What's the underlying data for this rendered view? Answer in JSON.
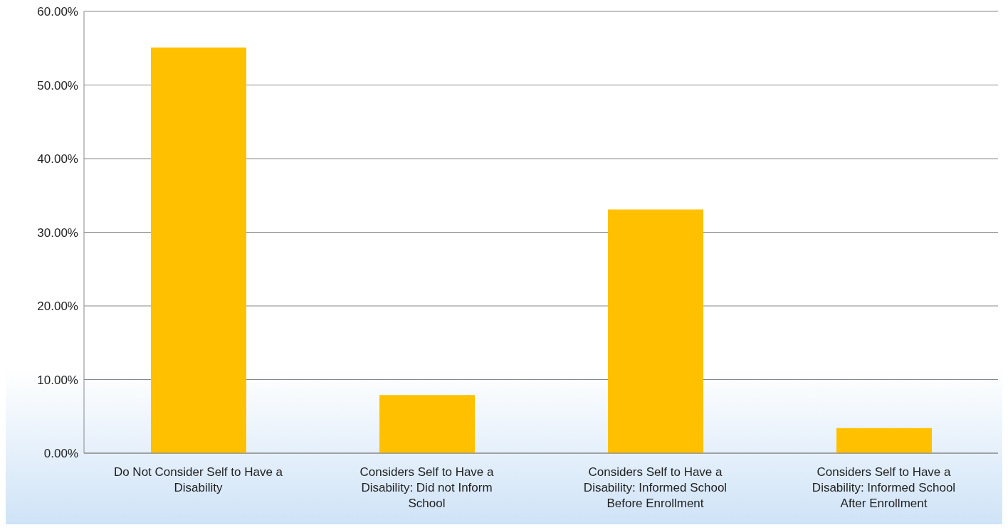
{
  "chart_data": {
    "type": "bar",
    "categories": [
      "Do Not Consider Self to Have a Disability",
      "Considers Self to Have a Disability: Did not Inform School",
      "Considers Self to Have a Disability: Informed School Before Enrollment",
      "Considers Self to Have a Disability: Informed School After Enrollment"
    ],
    "values": [
      55.1,
      7.9,
      33.1,
      3.4
    ],
    "color": "#ffc000",
    "ylim": [
      0,
      60
    ],
    "yticks": [
      {
        "value": 0,
        "label": "0.00%"
      },
      {
        "value": 10,
        "label": "10.00%"
      },
      {
        "value": 20,
        "label": "20.00%"
      },
      {
        "value": 30,
        "label": "30.00%"
      },
      {
        "value": 40,
        "label": "40.00%"
      },
      {
        "value": 50,
        "label": "50.00%"
      },
      {
        "value": 60,
        "label": "60.00%"
      }
    ],
    "grid": "y"
  }
}
